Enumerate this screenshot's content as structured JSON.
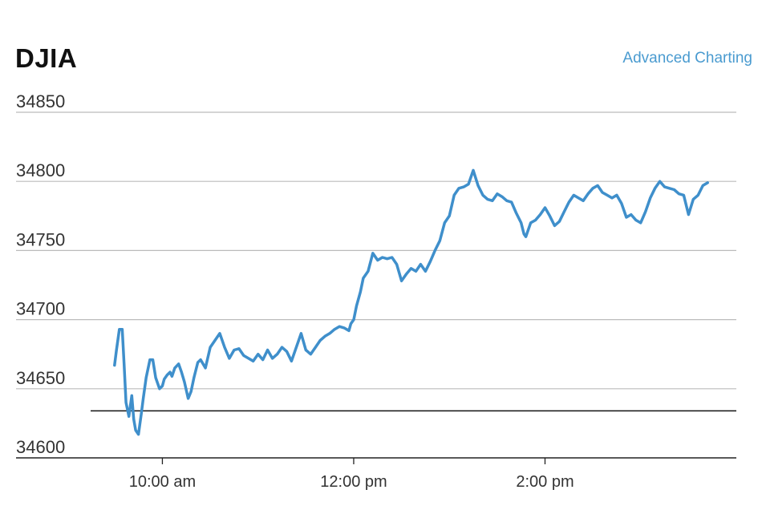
{
  "header": {
    "title": "DJIA",
    "advanced_link": "Advanced Charting"
  },
  "colors": {
    "line": "#3f8fcb",
    "grid": "#bbbbbb",
    "reference_line": "#111111",
    "link": "#4a9bd0"
  },
  "chart_data": {
    "type": "line",
    "title": "DJIA",
    "ylim": [
      34600,
      34850
    ],
    "yticks": [
      34850,
      34800,
      34750,
      34700,
      34650,
      34600
    ],
    "xlim": [
      9.25,
      16.0
    ],
    "xticks": [
      {
        "value": 10,
        "label": "10:00 am"
      },
      {
        "value": 12,
        "label": "12:00 pm"
      },
      {
        "value": 14,
        "label": "2:00 pm"
      }
    ],
    "reference_value": 34634,
    "grid": "horizontal",
    "series": [
      {
        "x": [
          9.5,
          9.52,
          9.55,
          9.58,
          9.6,
          9.62,
          9.65,
          9.68,
          9.7,
          9.72,
          9.75,
          9.78,
          9.8,
          9.83,
          9.87,
          9.9,
          9.93,
          9.97,
          10.0,
          10.02,
          10.05,
          10.08,
          10.1,
          10.13,
          10.17,
          10.2,
          10.23,
          10.27,
          10.3,
          10.33,
          10.37,
          10.4,
          10.45,
          10.5,
          10.55,
          10.6,
          10.65,
          10.7,
          10.75,
          10.8,
          10.85,
          10.9,
          10.95,
          11.0,
          11.05,
          11.1,
          11.15,
          11.2,
          11.25,
          11.3,
          11.35,
          11.4,
          11.45,
          11.5,
          11.55,
          11.6,
          11.65,
          11.7,
          11.75,
          11.8,
          11.85,
          11.9,
          11.95,
          11.97,
          12.0,
          12.03,
          12.07,
          12.1,
          12.15,
          12.2,
          12.25,
          12.3,
          12.35,
          12.4,
          12.45,
          12.5,
          12.55,
          12.6,
          12.65,
          12.7,
          12.75,
          12.8,
          12.85,
          12.9,
          12.95,
          13.0,
          13.05,
          13.1,
          13.15,
          13.2,
          13.25,
          13.3,
          13.35,
          13.4,
          13.45,
          13.5,
          13.55,
          13.6,
          13.65,
          13.7,
          13.75,
          13.78,
          13.8,
          13.85,
          13.9,
          13.95,
          14.0,
          14.05,
          14.1,
          14.15,
          14.2,
          14.25,
          14.3,
          14.35,
          14.4,
          14.45,
          14.5,
          14.55,
          14.6,
          14.65,
          14.7,
          14.75,
          14.8,
          14.85,
          14.9,
          14.95,
          15.0,
          15.05,
          15.1,
          15.15,
          15.2,
          15.25,
          15.3,
          15.35,
          15.4,
          15.45,
          15.5,
          15.55,
          15.6,
          15.65,
          15.7
        ],
        "y": [
          34667,
          34678,
          34693,
          34693,
          34668,
          34640,
          34630,
          34645,
          34628,
          34620,
          34617,
          34632,
          34643,
          34658,
          34671,
          34671,
          34658,
          34650,
          34652,
          34657,
          34660,
          34662,
          34659,
          34665,
          34668,
          34662,
          34655,
          34643,
          34648,
          34658,
          34669,
          34671,
          34665,
          34680,
          34685,
          34690,
          34680,
          34672,
          34678,
          34679,
          34674,
          34672,
          34670,
          34675,
          34671,
          34678,
          34672,
          34675,
          34680,
          34677,
          34670,
          34680,
          34690,
          34678,
          34675,
          34680,
          34685,
          34688,
          34690,
          34693,
          34695,
          34694,
          34692,
          34697,
          34700,
          34710,
          34720,
          34730,
          34735,
          34748,
          34743,
          34745,
          34744,
          34745,
          34740,
          34728,
          34733,
          34737,
          34735,
          34740,
          34735,
          34742,
          34750,
          34757,
          34770,
          34775,
          34790,
          34795,
          34796,
          34798,
          34808,
          34797,
          34790,
          34787,
          34786,
          34791,
          34789,
          34786,
          34785,
          34777,
          34770,
          34762,
          34760,
          34770,
          34772,
          34776,
          34781,
          34775,
          34768,
          34771,
          34778,
          34785,
          34790,
          34788,
          34786,
          34791,
          34795,
          34797,
          34792,
          34790,
          34788,
          34790,
          34784,
          34774,
          34776,
          34772,
          34770,
          34778,
          34788,
          34795,
          34800,
          34796,
          34795,
          34794,
          34791,
          34790,
          34776,
          34787,
          34790,
          34797,
          34799
        ]
      }
    ]
  }
}
